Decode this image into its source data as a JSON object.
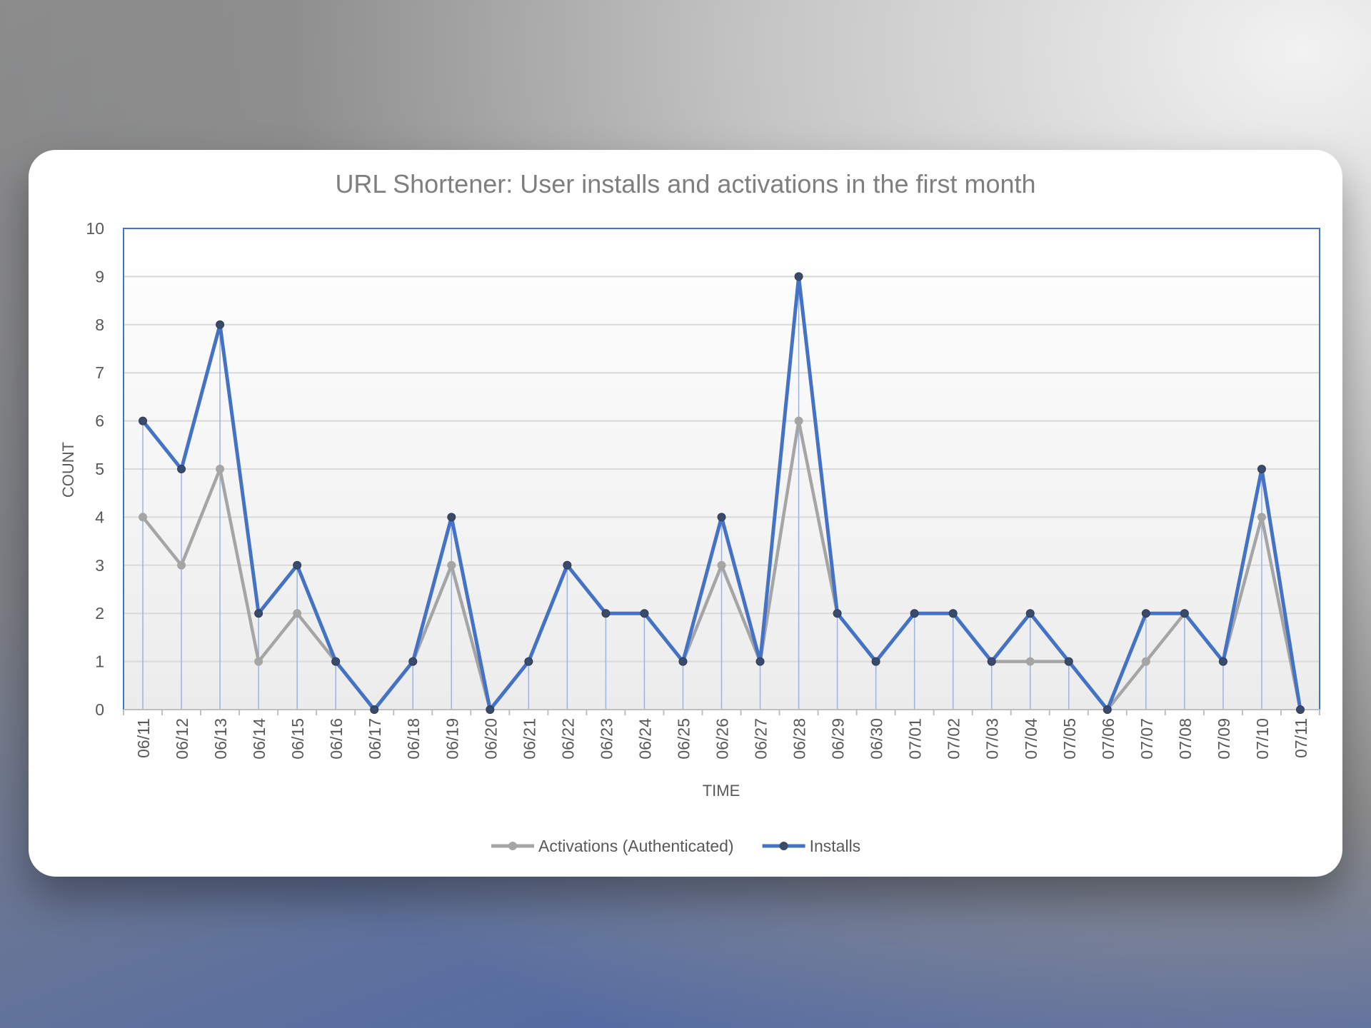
{
  "chart_data": {
    "type": "line",
    "title": "URL Shortener: User installs and activations in the first month",
    "xlabel": "TIME",
    "ylabel": "COUNT",
    "ylim": [
      0,
      10
    ],
    "yticks": [
      0,
      1,
      2,
      3,
      4,
      5,
      6,
      7,
      8,
      9,
      10
    ],
    "grid": true,
    "legend_position": "bottom",
    "categories": [
      "06/11",
      "06/12",
      "06/13",
      "06/14",
      "06/15",
      "06/16",
      "06/17",
      "06/18",
      "06/19",
      "06/20",
      "06/21",
      "06/22",
      "06/23",
      "06/24",
      "06/25",
      "06/26",
      "06/27",
      "06/28",
      "06/29",
      "06/30",
      "07/01",
      "07/02",
      "07/03",
      "07/04",
      "07/05",
      "07/06",
      "07/07",
      "07/08",
      "07/09",
      "07/10",
      "07/11"
    ],
    "series": [
      {
        "name": "Activations (Authenticated)",
        "color": "#a5a5a5",
        "values": [
          4,
          3,
          5,
          1,
          2,
          1,
          0,
          1,
          3,
          0,
          1,
          3,
          2,
          2,
          1,
          3,
          1,
          6,
          2,
          1,
          2,
          2,
          1,
          1,
          1,
          0,
          1,
          2,
          1,
          4,
          0
        ]
      },
      {
        "name": "Installs",
        "color": "#4472c4",
        "values": [
          6,
          5,
          8,
          2,
          3,
          1,
          0,
          1,
          4,
          0,
          1,
          3,
          2,
          2,
          1,
          4,
          1,
          9,
          2,
          1,
          2,
          2,
          1,
          2,
          1,
          0,
          2,
          2,
          1,
          5,
          0
        ]
      }
    ]
  }
}
